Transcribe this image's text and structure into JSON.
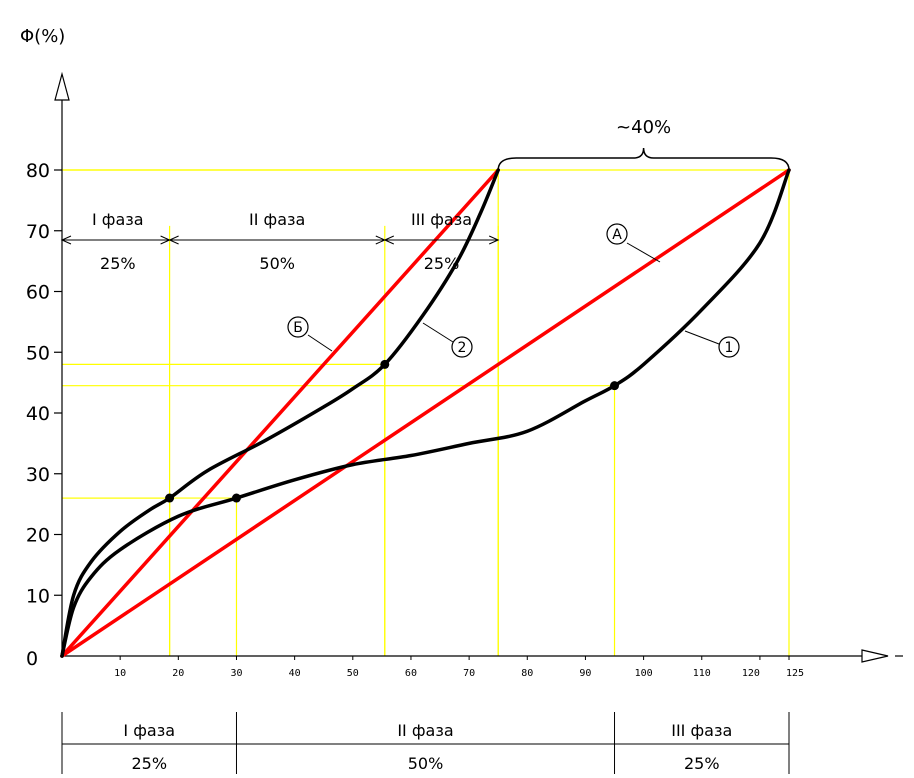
{
  "chart_data": {
    "type": "line",
    "ylabel": "Φ(%)",
    "xlim": [
      0,
      125
    ],
    "ylim": [
      0,
      80
    ],
    "x_ticks": [
      "10",
      "20",
      "30",
      "40",
      "50",
      "60",
      "70",
      "80",
      "90",
      "100",
      "110",
      "120",
      "125"
    ],
    "y_ticks": [
      "0",
      "10",
      "20",
      "30",
      "40",
      "50",
      "60",
      "70",
      "80"
    ],
    "series": [
      {
        "name": "А",
        "style": "straight",
        "color": "#ff0000",
        "x": [
          0,
          125
        ],
        "y": [
          0,
          80
        ]
      },
      {
        "name": "Б",
        "style": "straight",
        "color": "#ff0000",
        "x": [
          0,
          75
        ],
        "y": [
          0,
          80
        ]
      },
      {
        "name": "1",
        "style": "curve",
        "color": "#000000",
        "x": [
          0,
          2,
          5,
          10,
          20,
          30,
          40,
          50,
          60,
          70,
          80,
          90,
          95,
          100,
          110,
          120,
          125
        ],
        "y": [
          0,
          8,
          13,
          17.5,
          23,
          26,
          29,
          31.5,
          33,
          35,
          37,
          42,
          44.5,
          48,
          57,
          68,
          80
        ]
      },
      {
        "name": "2",
        "style": "curve",
        "color": "#000000",
        "x": [
          0,
          2,
          5,
          10,
          15,
          18.5,
          25,
          35,
          45,
          50,
          55.5,
          62,
          68,
          72,
          75
        ],
        "y": [
          0,
          10,
          15.5,
          20.5,
          24,
          26,
          30.5,
          35.5,
          41,
          44,
          48,
          56,
          65,
          73,
          80
        ]
      }
    ],
    "guide_color": "#ffff00",
    "guides": [
      {
        "x": 18.5,
        "y": 26
      },
      {
        "x": 30,
        "y": 26
      },
      {
        "x": 55.5,
        "y": 48
      },
      {
        "x": 75,
        "y": 80
      },
      {
        "x": 95,
        "y": 44.5
      },
      {
        "x": 125,
        "y": 80
      }
    ],
    "points": [
      {
        "x": 18.5,
        "y": 26
      },
      {
        "x": 30,
        "y": 26
      },
      {
        "x": 55.5,
        "y": 48
      },
      {
        "x": 95,
        "y": 44.5
      }
    ],
    "top_phases": [
      {
        "label": "I фаза",
        "percent": "25%",
        "x_from": 0,
        "x_to": 18.5
      },
      {
        "label": "II фаза",
        "percent": "50%",
        "x_from": 18.5,
        "x_to": 55.5
      },
      {
        "label": "III фаза",
        "percent": "25%",
        "x_from": 55.5,
        "x_to": 75
      }
    ],
    "bottom_phases": [
      {
        "label": "I фаза",
        "percent": "25%",
        "x_from": 0,
        "x_to": 30
      },
      {
        "label": "II фаза",
        "percent": "50%",
        "x_from": 30,
        "x_to": 95
      },
      {
        "label": "III фаза",
        "percent": "25%",
        "x_from": 95,
        "x_to": 125
      }
    ],
    "brace_label": "~40%",
    "origin_label": "0"
  }
}
